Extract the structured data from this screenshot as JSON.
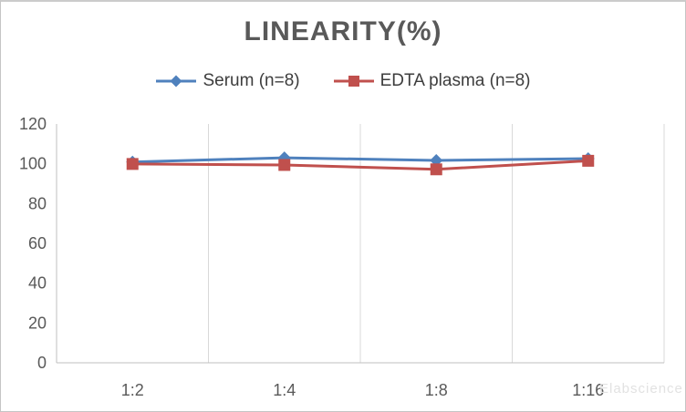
{
  "window": {
    "background": "#ffffff",
    "border_color": "#c5c5c5"
  },
  "title": "LINEARITY(%)",
  "watermark": "Elabscience",
  "legend": {
    "serum_label": "Serum (n=8)",
    "edta_label": "EDTA plasma (n=8)"
  },
  "chart_data": {
    "type": "line",
    "title": "LINEARITY(%)",
    "categories": [
      "1:2",
      "1:4",
      "1:8",
      "1:16"
    ],
    "series": [
      {
        "name": "Serum (n=8)",
        "marker": "diamond",
        "color": "#4F81BD",
        "values": [
          100.9,
          103.0,
          101.7,
          102.6
        ]
      },
      {
        "name": "EDTA plasma (n=8)",
        "marker": "square",
        "color": "#C0504D",
        "values": [
          99.9,
          99.4,
          97.2,
          101.5
        ]
      }
    ],
    "ylim": [
      0,
      120
    ],
    "yticks": [
      0,
      20,
      40,
      60,
      80,
      100,
      120
    ],
    "xlabel": "",
    "ylabel": "",
    "grid": "vertical-only",
    "legend_position": "top",
    "axis_color": "#BFBFBF",
    "gridline_color": "#D9D9D9",
    "tick_label_color": "#595959"
  }
}
